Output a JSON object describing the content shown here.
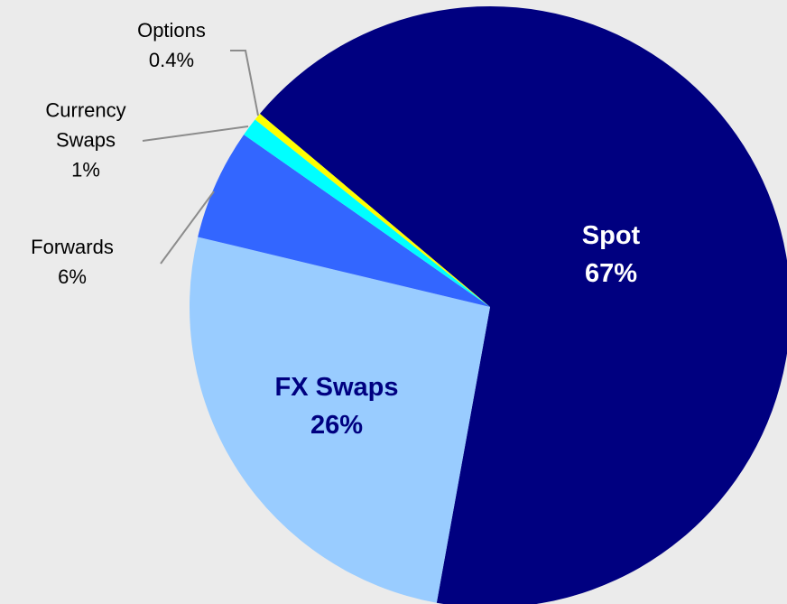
{
  "chart_data": {
    "type": "pie",
    "categories": [
      "Spot",
      "FX Swaps",
      "Forwards",
      "Currency Swaps",
      "Options"
    ],
    "values": [
      67,
      26,
      6,
      1,
      0.4
    ],
    "value_labels": [
      "67%",
      "26%",
      "6%",
      "1%",
      "0.4%"
    ],
    "colors": [
      "#000080",
      "#99ccff",
      "#3366ff",
      "#00ffff",
      "#ffff00"
    ]
  }
}
